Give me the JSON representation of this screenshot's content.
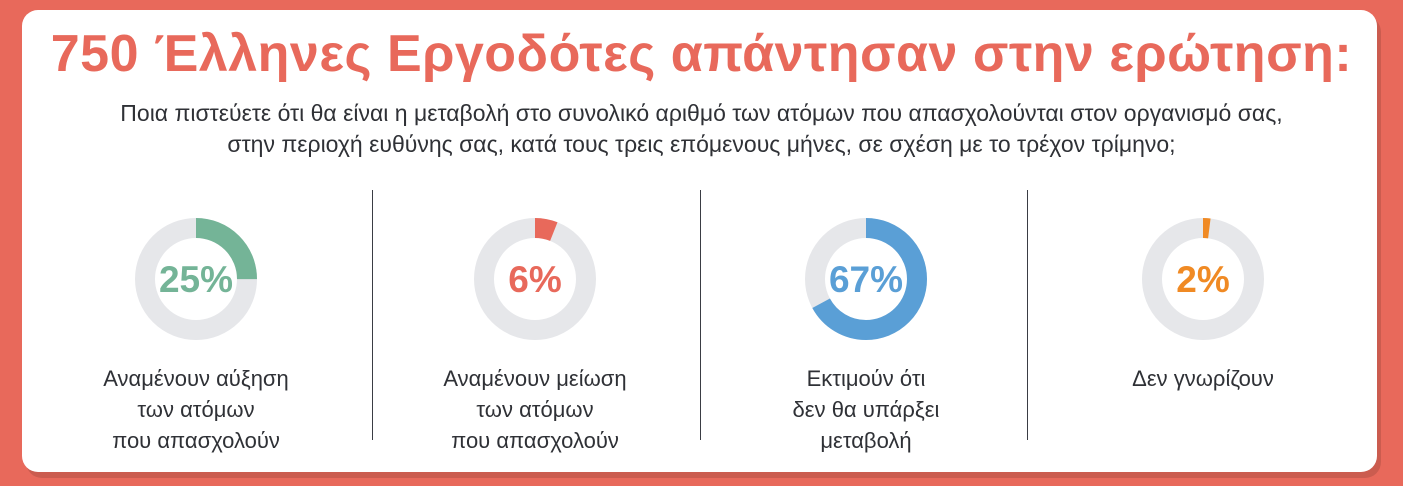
{
  "header": {
    "title": "750 Έλληνες Εργοδότες απάντησαν στην ερώτηση:",
    "question_line1": "Ποια πιστεύετε ότι θα είναι η μεταβολή στο συνολικό αριθμό των ατόμων που απασχολούνται στον οργανισμό σας,",
    "question_line2": "στην περιοχή ευθύνης σας, κατά τους τρεις επόμενους μήνες, σε σχέση με το τρέχον τρίμηνο;"
  },
  "chart_data": {
    "type": "pie",
    "categories": [
      "Αναμένουν αύξηση των ατόμων που απασχολούν",
      "Αναμένουν μείωση των ατόμων που απασχολούν",
      "Εκτιμούν ότι δεν θα υπάρξει μεταβολή",
      "Δεν γνωρίζουν"
    ],
    "values": [
      25,
      6,
      67,
      2
    ],
    "unit": "%",
    "items": [
      {
        "value": 25,
        "value_label": "25%",
        "color": "#74b497",
        "label_lines": [
          "Αναμένουν αύξηση",
          "των ατόμων",
          "που απασχολούν"
        ]
      },
      {
        "value": 6,
        "value_label": "6%",
        "color": "#e8695b",
        "label_lines": [
          "Αναμένουν μείωση",
          "των ατόμων",
          "που απασχολούν"
        ]
      },
      {
        "value": 67,
        "value_label": "67%",
        "color": "#5a9fd6",
        "label_lines": [
          "Εκτιμούν ότι",
          "δεν θα υπάρξει",
          "μεταβολή"
        ]
      },
      {
        "value": 2,
        "value_label": "2%",
        "color": "#f08a24",
        "label_lines": [
          "Δεν γνωρίζουν"
        ]
      }
    ],
    "track_color": "#e6e7ea",
    "background_color": "#e8695b"
  }
}
